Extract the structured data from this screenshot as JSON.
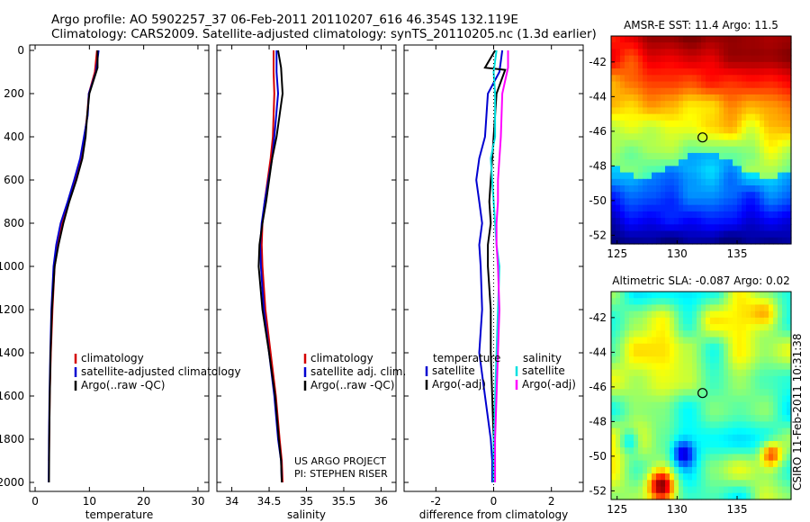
{
  "header": {
    "line1": "Argo profile: AO 5902257_37 06-Feb-2011 20110207_616 46.354S 132.119E",
    "line2": "Climatology: CARS2009. Satellite-adjusted climatology: synTS_20110205.nc (1.3d earlier)"
  },
  "side_note": "CSIRO 11-Feb-2011 10:31:38",
  "colors": {
    "climatology": "#d40000",
    "satellite": "#0000d0",
    "argo": "#000000",
    "cyan": "#00e0e0",
    "magenta": "#ff00ff"
  },
  "chart_data": [
    {
      "type": "line",
      "name": "temperature-profile",
      "xlabel": "temperature",
      "ylabel": "",
      "xlim": [
        -1,
        32
      ],
      "ylim": [
        2050,
        0
      ],
      "xticks": [
        "0",
        "10",
        "20",
        "30"
      ],
      "yticks": [
        "0",
        "200",
        "400",
        "600",
        "800",
        "1000",
        "1200",
        "1400",
        "1600",
        "1800",
        "2000"
      ],
      "legend": [
        "climatology",
        "satellite-adjusted climatology",
        "Argo(..raw -QC)"
      ],
      "series": [
        {
          "name": "climatology",
          "color": "#d40000",
          "x": [
            11.4,
            11.0,
            9.9,
            9.6,
            9.1,
            8.4,
            7.3,
            6.2,
            5.0,
            4.2,
            3.6,
            3.2,
            2.9,
            2.7,
            2.6,
            2.55
          ],
          "y": [
            0,
            100,
            200,
            300,
            400,
            500,
            600,
            700,
            800,
            900,
            1000,
            1200,
            1400,
            1600,
            1800,
            1900
          ]
        },
        {
          "name": "satellite-adjusted climatology",
          "color": "#0000d0",
          "x": [
            11.7,
            11.2,
            9.9,
            9.7,
            9.0,
            8.3,
            7.2,
            6.0,
            4.7,
            3.9,
            3.4,
            3.0,
            2.8,
            2.65,
            2.55,
            2.5
          ],
          "y": [
            0,
            100,
            200,
            300,
            400,
            500,
            600,
            700,
            800,
            900,
            1000,
            1200,
            1400,
            1600,
            1800,
            2000
          ]
        },
        {
          "name": "Argo(..raw -QC)",
          "color": "#000000",
          "x": [
            11.5,
            11.5,
            10.0,
            9.6,
            9.3,
            8.7,
            7.6,
            6.3,
            5.2,
            4.3,
            3.6,
            3.1,
            2.85,
            2.7,
            2.6,
            2.55
          ],
          "y": [
            0,
            80,
            200,
            300,
            400,
            500,
            600,
            700,
            800,
            900,
            1000,
            1200,
            1400,
            1600,
            1800,
            2000
          ]
        }
      ]
    },
    {
      "type": "line",
      "name": "salinity-profile",
      "xlabel": "salinity",
      "xlim": [
        33.8,
        36.2
      ],
      "ylim": [
        2050,
        0
      ],
      "xticks": [
        "34",
        "34.5",
        "35",
        "35.5",
        "36"
      ],
      "legend": [
        "climatology",
        "satellite adj. clim.",
        "Argo(..raw -QC)"
      ],
      "annotation": [
        "US ARGO PROJECT",
        "PI: STEPHEN RISER"
      ],
      "series": [
        {
          "name": "climatology",
          "color": "#d40000",
          "x": [
            34.56,
            34.56,
            34.57,
            34.55,
            34.52,
            34.48,
            34.44,
            34.41,
            34.4,
            34.41,
            34.45,
            34.52,
            34.59,
            34.64,
            34.67,
            34.68
          ],
          "y": [
            0,
            100,
            200,
            400,
            500,
            600,
            700,
            800,
            900,
            1000,
            1200,
            1400,
            1600,
            1800,
            1900,
            2000
          ]
        },
        {
          "name": "satellite adj. clim.",
          "color": "#0000d0",
          "x": [
            34.6,
            34.6,
            34.62,
            34.57,
            34.54,
            34.49,
            34.44,
            34.4,
            34.38,
            34.39,
            34.43,
            34.5,
            34.57,
            34.62,
            34.66,
            34.67
          ],
          "y": [
            0,
            100,
            200,
            400,
            500,
            600,
            700,
            800,
            900,
            1000,
            1200,
            1400,
            1600,
            1800,
            1900,
            2000
          ]
        },
        {
          "name": "Argo(..raw -QC)",
          "color": "#000000",
          "x": [
            34.62,
            34.66,
            34.68,
            34.6,
            34.54,
            34.5,
            34.46,
            34.41,
            34.37,
            34.36,
            34.41,
            34.5,
            34.58,
            34.63,
            34.66,
            34.67
          ],
          "y": [
            0,
            80,
            200,
            400,
            500,
            600,
            700,
            800,
            900,
            1000,
            1200,
            1400,
            1600,
            1800,
            1900,
            2000
          ]
        }
      ]
    },
    {
      "type": "line",
      "name": "difference-profile",
      "xlabel": "difference from climatology",
      "xlim": [
        -3.1,
        3.1
      ],
      "ylim": [
        2050,
        0
      ],
      "xticks": [
        "-2",
        "0",
        "2"
      ],
      "legend_left_title": "temperature",
      "legend_right_title": "salinity",
      "legend_left": [
        "satellite",
        "Argo(-adj)"
      ],
      "legend_right": [
        "satellite",
        "Argo(-adj)"
      ],
      "series": [
        {
          "name": "temperature satellite",
          "color": "#0000d0",
          "x": [
            0.3,
            0.2,
            -0.2,
            -0.3,
            -0.5,
            -0.6,
            -0.5,
            -0.4,
            -0.5,
            -0.45,
            -0.4,
            -0.5,
            -0.3,
            -0.1,
            -0.05,
            -0.05
          ],
          "y": [
            0,
            100,
            200,
            400,
            500,
            600,
            700,
            800,
            900,
            1000,
            1200,
            1400,
            1600,
            1800,
            1900,
            2000
          ]
        },
        {
          "name": "temperature Argo(-adj)",
          "color": "#000000",
          "x": [
            0.05,
            -0.3,
            0.4,
            0.1,
            0.0,
            -0.1,
            -0.15,
            -0.1,
            -0.2,
            -0.2,
            -0.1,
            -0.1,
            -0.05,
            0.0,
            0.0,
            0.0
          ],
          "y": [
            0,
            80,
            90,
            200,
            400,
            600,
            700,
            800,
            900,
            1000,
            1200,
            1400,
            1600,
            1800,
            1900,
            2000
          ]
        },
        {
          "name": "salinity satellite",
          "color": "#00e0e0",
          "x": [
            0.1,
            0.0,
            0.05,
            0.05,
            -0.1,
            -0.05,
            0.0,
            0.05,
            0.1,
            0.2,
            0.15,
            0.1,
            0.05,
            0.0,
            0.0
          ],
          "y": [
            0,
            100,
            200,
            400,
            500,
            600,
            700,
            800,
            900,
            1000,
            1200,
            1400,
            1600,
            1800,
            2000
          ]
        },
        {
          "name": "salinity Argo(-adj)",
          "color": "#ff00ff",
          "x": [
            0.5,
            0.5,
            0.3,
            0.25,
            0.2,
            0.15,
            0.15,
            0.1,
            0.1,
            0.15,
            0.2,
            0.15,
            0.1,
            0.05,
            0.05
          ],
          "y": [
            0,
            80,
            200,
            400,
            500,
            600,
            700,
            800,
            900,
            1000,
            1200,
            1400,
            1600,
            1800,
            2000
          ]
        }
      ]
    },
    {
      "type": "heatmap",
      "name": "sst-map",
      "title": "AMSR-E SST: 11.4  Argo: 11.5",
      "xlim": [
        124.5,
        139.5
      ],
      "ylim": [
        -52.5,
        -40.5
      ],
      "xticks": [
        "125",
        "130",
        "135"
      ],
      "yticks": [
        "-42",
        "-44",
        "-46",
        "-48",
        "-50",
        "-52"
      ],
      "marker": {
        "lon": 132.119,
        "lat": -46.354
      }
    },
    {
      "type": "heatmap",
      "name": "sla-map",
      "title": "Altimetric SLA: -0.087  Argo: 0.02",
      "xlim": [
        124.5,
        139.5
      ],
      "ylim": [
        -52.5,
        -40.5
      ],
      "xticks": [
        "125",
        "130",
        "135"
      ],
      "yticks": [
        "-42",
        "-44",
        "-46",
        "-48",
        "-50",
        "-52"
      ],
      "marker": {
        "lon": 132.119,
        "lat": -46.354
      }
    }
  ]
}
